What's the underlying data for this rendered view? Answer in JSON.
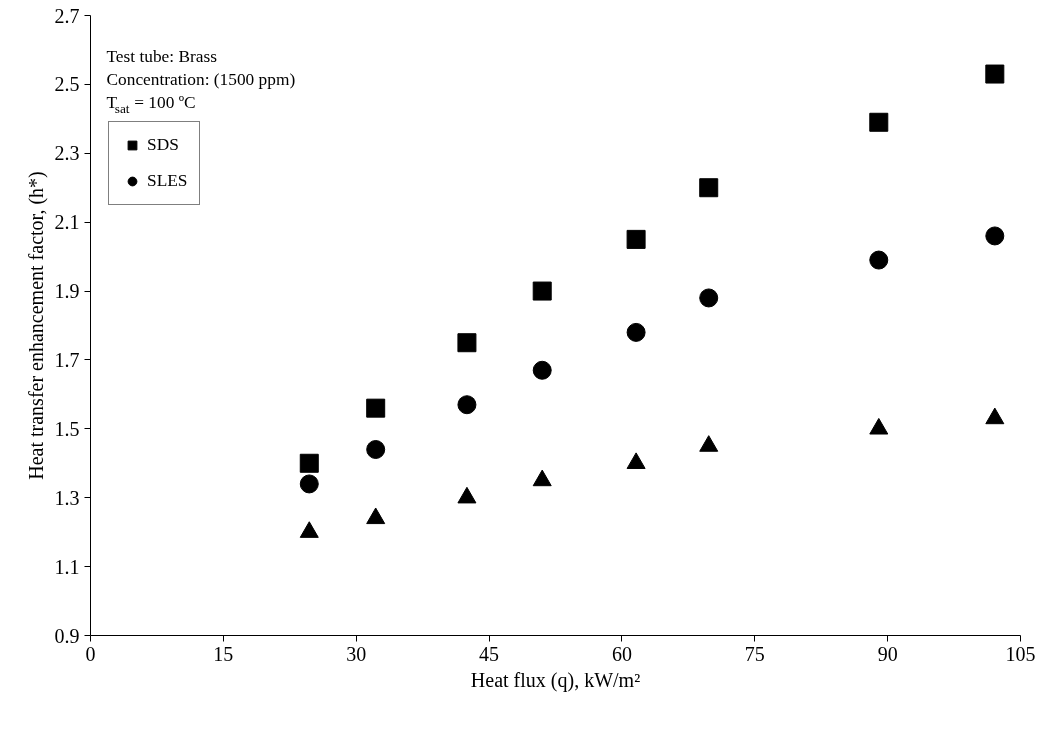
{
  "chart_data": {
    "type": "scatter",
    "xlabel": "Heat flux (q), kW/m²",
    "ylabel": "Heat transfer enhancement factor, (h*)",
    "annotations": [
      "Test tube: Brass",
      "Concentration: (1500 ppm)",
      "T$_{sat}$ = 100 ºC"
    ],
    "x": [
      24.7,
      32.2,
      42.5,
      51.0,
      61.6,
      69.8,
      89.0,
      102.1
    ],
    "series": [
      {
        "name": "SDS",
        "color": "#000000",
        "marker": "square",
        "values": [
          1.4,
          1.56,
          1.75,
          1.9,
          2.05,
          2.2,
          2.39,
          2.53
        ]
      },
      {
        "name": "SLES",
        "color": "#000000",
        "marker": "circle",
        "values": [
          1.34,
          1.44,
          1.57,
          1.67,
          1.78,
          1.88,
          1.99,
          2.06
        ]
      },
      {
        "color": "#000000",
        "marker": "triangle",
        "values": [
          1.2,
          1.24,
          1.3,
          1.35,
          1.4,
          1.45,
          1.5,
          1.53
        ]
      }
    ],
    "xlim": [
      0,
      105
    ],
    "xticks": [
      0,
      15,
      30,
      45,
      60,
      75,
      90,
      105
    ],
    "ylim": [
      0.9,
      2.7
    ],
    "yticks": [
      0.9,
      1.1,
      1.3,
      1.5,
      1.7,
      1.9,
      2.1,
      2.3,
      2.5,
      2.7
    ],
    "grid": false,
    "legend": "top left"
  }
}
